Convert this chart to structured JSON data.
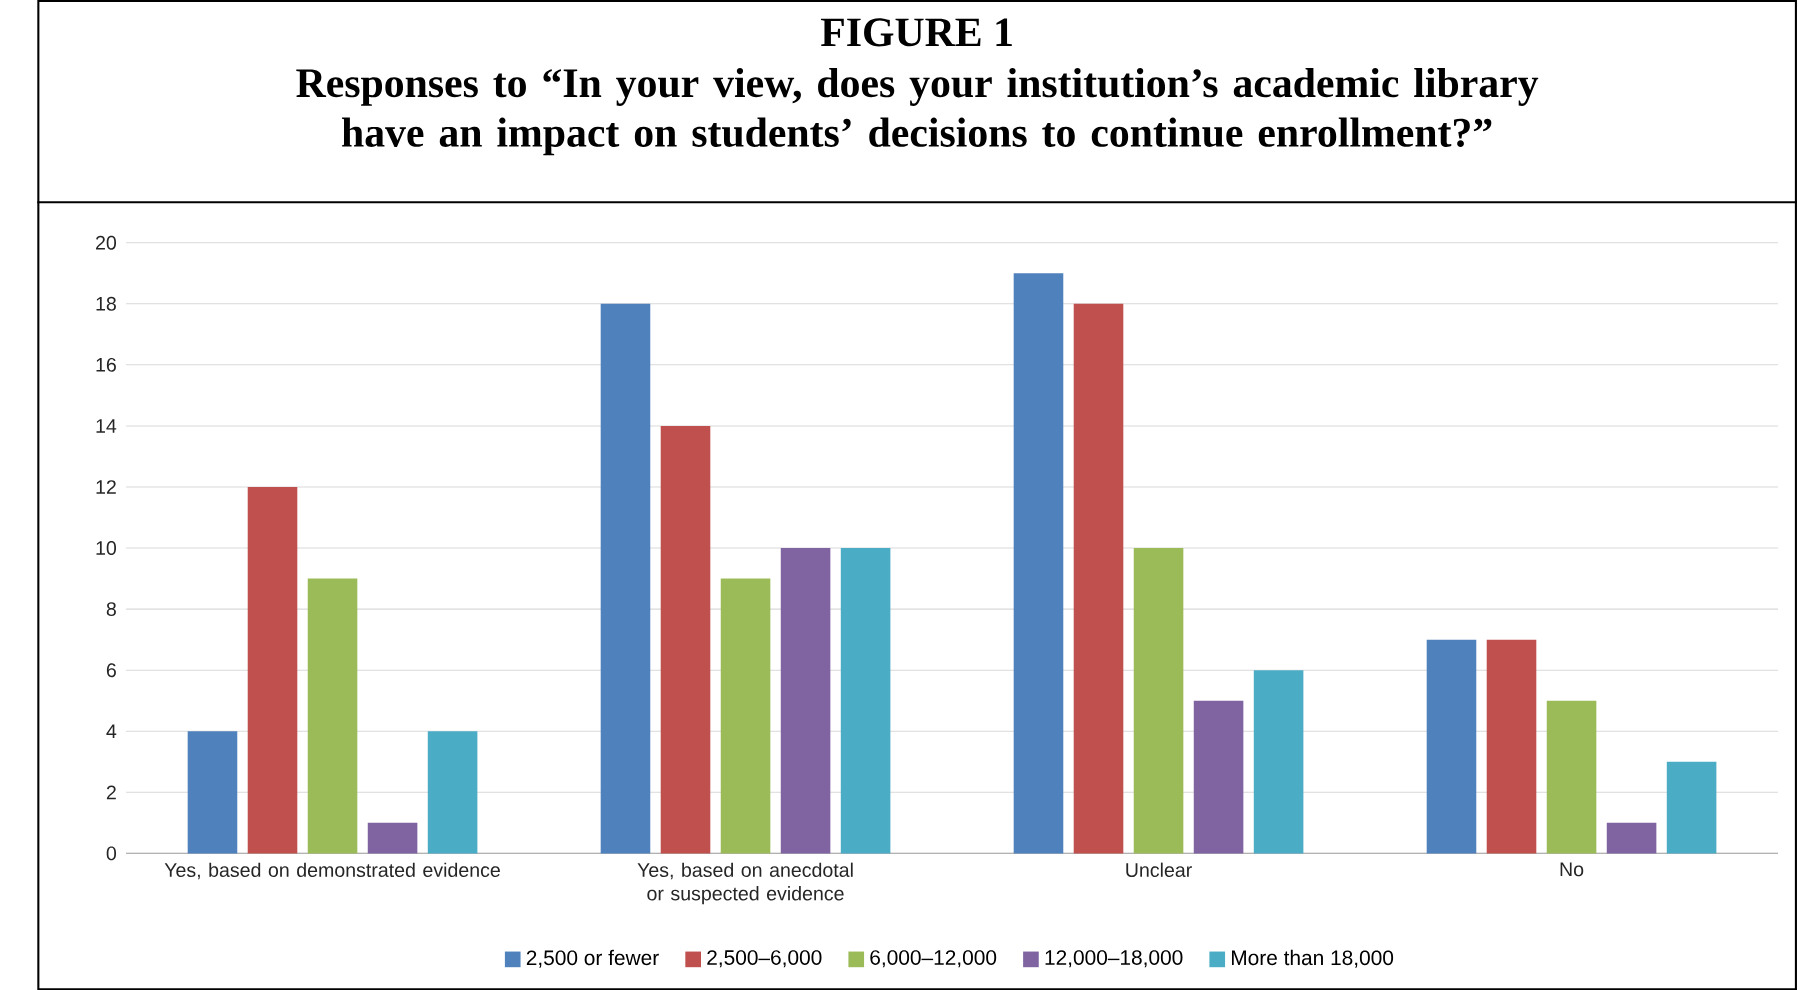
{
  "chart_data": {
    "type": "bar",
    "title": "FIGURE 1",
    "subtitle": "Responses to “In your view, does your institution’s academic library have an impact on students’ decisions to continue enrollment?”",
    "categories": [
      "Yes, based on demonstrated evidence",
      "Yes, based on anecdotal or suspected evidence",
      "Unclear",
      "No"
    ],
    "series": [
      {
        "name": "2,500 or fewer",
        "color": "#4f81bd",
        "values": [
          4,
          18,
          19,
          7
        ]
      },
      {
        "name": "2,500–6,000",
        "color": "#c0504d",
        "values": [
          12,
          14,
          18,
          7
        ]
      },
      {
        "name": "6,000–12,000",
        "color": "#9bbb59",
        "values": [
          9,
          9,
          10,
          5
        ]
      },
      {
        "name": "12,000–18,000",
        "color": "#8064a2",
        "values": [
          1,
          10,
          5,
          1
        ]
      },
      {
        "name": "More than 18,000",
        "color": "#4bacc6",
        "values": [
          4,
          10,
          6,
          3
        ]
      }
    ],
    "ylim": [
      0,
      20
    ],
    "yticks": [
      0,
      2,
      4,
      6,
      8,
      10,
      12,
      14,
      16,
      18,
      20
    ],
    "grid": "y",
    "legend": "bottom"
  }
}
